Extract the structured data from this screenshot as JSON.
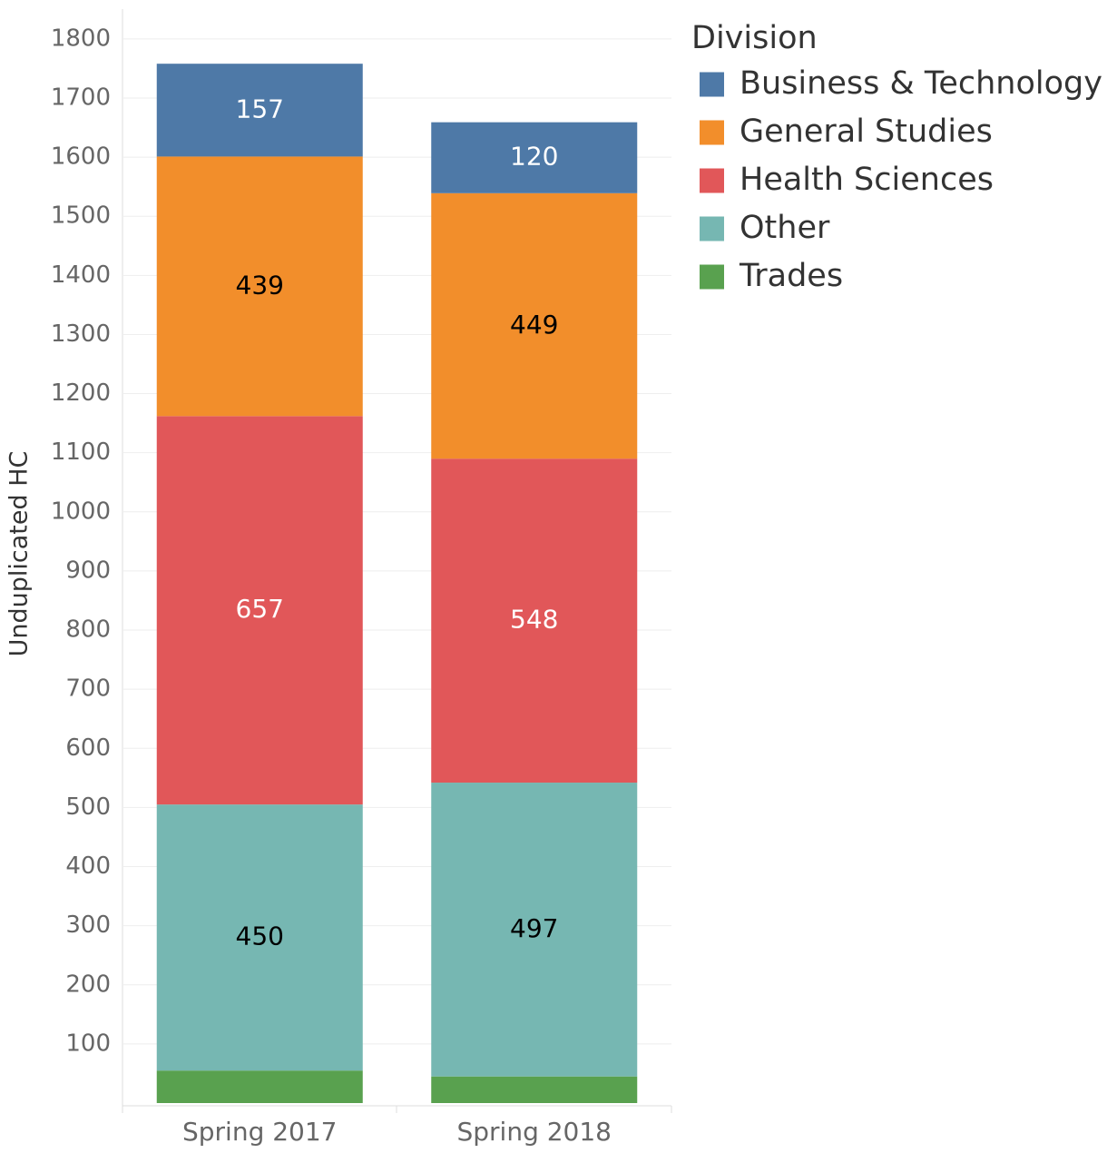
{
  "chart_data": {
    "type": "stacked_bar",
    "y_label": "Unduplicated HC",
    "legend_title": "Division",
    "legend": "right",
    "categories": [
      "Spring 2017",
      "Spring 2018"
    ],
    "series": [
      {
        "name": "Business & Technology",
        "color": "#4e79a7",
        "label_color": "#ffffff",
        "values": [
          157,
          120
        ]
      },
      {
        "name": "General Studies",
        "color": "#f28e2b",
        "label_color": "#000000",
        "values": [
          439,
          449
        ]
      },
      {
        "name": "Health Sciences",
        "color": "#e15759",
        "label_color": "#ffffff",
        "values": [
          657,
          548
        ]
      },
      {
        "name": "Other",
        "color": "#76b7b2",
        "label_color": "#000000",
        "values": [
          450,
          497
        ]
      },
      {
        "name": "Trades",
        "color": "#59a14f",
        "label_color": "#ffffff",
        "values": [
          55,
          45
        ]
      }
    ],
    "ylim": [
      0,
      1850
    ],
    "yticks": [
      100,
      200,
      300,
      400,
      500,
      600,
      700,
      800,
      900,
      1000,
      1100,
      1200,
      1300,
      1400,
      1500,
      1600,
      1700,
      1800
    ],
    "grid": true
  }
}
